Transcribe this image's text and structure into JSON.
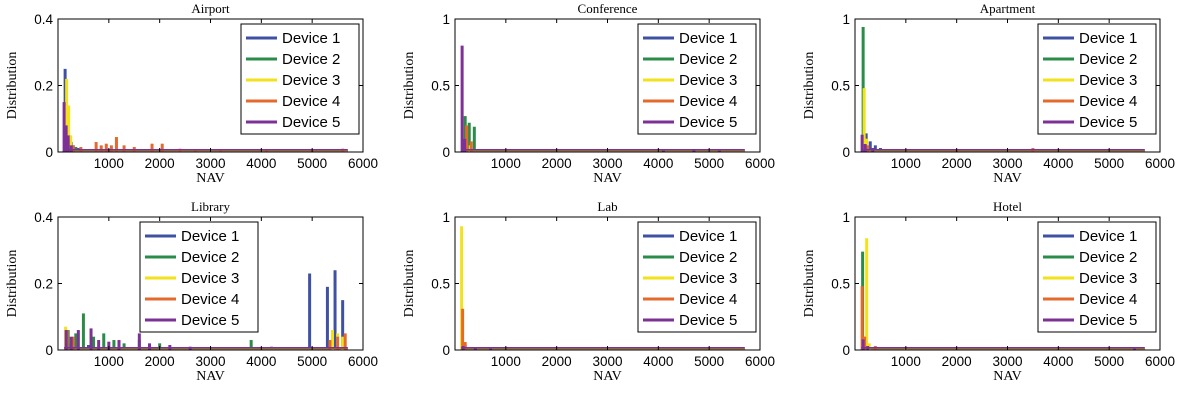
{
  "figure": {
    "legend_entries": [
      "Device 1",
      "Device 2",
      "Device 3",
      "Device 4",
      "Device 5"
    ]
  },
  "chart_data": [
    {
      "type": "line",
      "title": "Airport",
      "xlabel": "NAV",
      "ylabel": "Distribution",
      "xlim": [
        0,
        6000
      ],
      "ylim": [
        0,
        0.4
      ],
      "xticks": [
        "1000",
        "2000",
        "3000",
        "4000",
        "5000",
        "6000"
      ],
      "yticks": [
        "0",
        "0.2",
        "0.4"
      ],
      "legend": "top-right",
      "grid": false,
      "series": [
        {
          "name": "Device 1",
          "color": "#3F51A3",
          "spikes": [
            [
              140,
              0.25
            ],
            [
              180,
              0.11
            ],
            [
              220,
              0.05
            ],
            [
              300,
              0.02
            ],
            [
              400,
              0.012
            ],
            [
              600,
              0.008
            ]
          ]
        },
        {
          "name": "Device 2",
          "color": "#2A8C48",
          "spikes": [
            [
              150,
              0.12
            ],
            [
              200,
              0.07
            ],
            [
              260,
              0.03
            ],
            [
              350,
              0.015
            ]
          ]
        },
        {
          "name": "Device 3",
          "color": "#F2E21B",
          "spikes": [
            [
              170,
              0.22
            ],
            [
              210,
              0.14
            ],
            [
              250,
              0.05
            ]
          ]
        },
        {
          "name": "Device 4",
          "color": "#E36A2C",
          "spikes": [
            [
              200,
              0.04
            ],
            [
              300,
              0.02
            ],
            [
              450,
              0.015
            ],
            [
              750,
              0.03
            ],
            [
              850,
              0.02
            ],
            [
              950,
              0.025
            ],
            [
              1050,
              0.02
            ],
            [
              1150,
              0.045
            ],
            [
              1300,
              0.02
            ],
            [
              1500,
              0.015
            ],
            [
              1850,
              0.025
            ],
            [
              2050,
              0.025
            ],
            [
              2400,
              0.01
            ],
            [
              2700,
              0.008
            ],
            [
              3200,
              0.006
            ],
            [
              4100,
              0.005
            ],
            [
              5000,
              0.006
            ],
            [
              5600,
              0.01
            ]
          ]
        },
        {
          "name": "Device 5",
          "color": "#7B3294",
          "spikes": [
            [
              120,
              0.15
            ],
            [
              160,
              0.08
            ],
            [
              200,
              0.05
            ],
            [
              260,
              0.02
            ]
          ]
        }
      ]
    },
    {
      "type": "line",
      "title": "Conference",
      "xlabel": "NAV",
      "ylabel": "Distribution",
      "xlim": [
        0,
        6000
      ],
      "ylim": [
        0,
        1
      ],
      "xticks": [
        "1000",
        "2000",
        "3000",
        "4000",
        "5000",
        "6000"
      ],
      "yticks": [
        "0",
        "0.5",
        "1"
      ],
      "legend": "top-right",
      "grid": false,
      "series": [
        {
          "name": "Device 1",
          "color": "#3F51A3",
          "spikes": [
            [
              180,
              0.05
            ],
            [
              260,
              0.03
            ],
            [
              400,
              0.02
            ],
            [
              700,
              0.01
            ]
          ]
        },
        {
          "name": "Device 2",
          "color": "#2A8C48",
          "spikes": [
            [
              200,
              0.27
            ],
            [
              280,
              0.22
            ],
            [
              380,
              0.19
            ],
            [
              500,
              0.02
            ],
            [
              1500,
              0.012
            ],
            [
              2500,
              0.012
            ],
            [
              3500,
              0.012
            ]
          ]
        },
        {
          "name": "Device 3",
          "color": "#F2E21B",
          "spikes": [
            [
              220,
              0.1
            ],
            [
              300,
              0.05
            ]
          ]
        },
        {
          "name": "Device 4",
          "color": "#E36A2C",
          "spikes": [
            [
              230,
              0.2
            ],
            [
              320,
              0.08
            ]
          ]
        },
        {
          "name": "Device 5",
          "color": "#7B3294",
          "spikes": [
            [
              140,
              0.8
            ],
            [
              190,
              0.1
            ],
            [
              4100,
              0.01
            ],
            [
              4700,
              0.012
            ],
            [
              5200,
              0.01
            ]
          ]
        }
      ]
    },
    {
      "type": "line",
      "title": "Apartment",
      "xlabel": "NAV",
      "ylabel": "Distribution",
      "xlim": [
        0,
        6000
      ],
      "ylim": [
        0,
        1
      ],
      "xticks": [
        "1000",
        "2000",
        "3000",
        "4000",
        "5000",
        "6000"
      ],
      "yticks": [
        "0",
        "0.5",
        "1"
      ],
      "legend": "top-right",
      "grid": false,
      "series": [
        {
          "name": "Device 1",
          "color": "#3F51A3",
          "spikes": [
            [
              220,
              0.14
            ],
            [
              300,
              0.08
            ],
            [
              400,
              0.05
            ],
            [
              500,
              0.03
            ]
          ]
        },
        {
          "name": "Device 2",
          "color": "#2A8C48",
          "spikes": [
            [
              160,
              0.94
            ],
            [
              210,
              0.1
            ]
          ]
        },
        {
          "name": "Device 3",
          "color": "#F2E21B",
          "spikes": [
            [
              180,
              0.48
            ],
            [
              230,
              0.1
            ]
          ]
        },
        {
          "name": "Device 4",
          "color": "#E36A2C",
          "spikes": [
            [
              250,
              0.05
            ],
            [
              3500,
              0.03
            ],
            [
              2000,
              0.01
            ]
          ]
        },
        {
          "name": "Device 5",
          "color": "#7B3294",
          "spikes": [
            [
              140,
              0.13
            ],
            [
              200,
              0.06
            ],
            [
              350,
              0.03
            ]
          ]
        }
      ]
    },
    {
      "type": "line",
      "title": "Library",
      "xlabel": "NAV",
      "ylabel": "Distribution",
      "xlim": [
        0,
        6000
      ],
      "ylim": [
        0,
        0.4
      ],
      "xticks": [
        "1000",
        "2000",
        "3000",
        "4000",
        "5000",
        "6000"
      ],
      "yticks": [
        "0",
        "0.2",
        "0.4"
      ],
      "legend": "top-center",
      "grid": false,
      "series": [
        {
          "name": "Device 1",
          "color": "#3F51A3",
          "spikes": [
            [
              4950,
              0.23
            ],
            [
              5300,
              0.19
            ],
            [
              5450,
              0.24
            ],
            [
              5600,
              0.15
            ],
            [
              200,
              0.02
            ],
            [
              600,
              0.015
            ]
          ]
        },
        {
          "name": "Device 2",
          "color": "#2A8C48",
          "spikes": [
            [
              200,
              0.06
            ],
            [
              350,
              0.05
            ],
            [
              500,
              0.11
            ],
            [
              700,
              0.04
            ],
            [
              900,
              0.05
            ],
            [
              1100,
              0.03
            ],
            [
              1300,
              0.02
            ],
            [
              1600,
              0.03
            ],
            [
              2000,
              0.02
            ],
            [
              3800,
              0.03
            ],
            [
              4200,
              0.01
            ]
          ]
        },
        {
          "name": "Device 3",
          "color": "#F2E21B",
          "spikes": [
            [
              150,
              0.07
            ],
            [
              5400,
              0.06
            ],
            [
              5500,
              0.05
            ],
            [
              5600,
              0.04
            ]
          ]
        },
        {
          "name": "Device 4",
          "color": "#E36A2C",
          "spikes": [
            [
              180,
              0.06
            ],
            [
              300,
              0.04
            ],
            [
              5350,
              0.03
            ],
            [
              5500,
              0.04
            ],
            [
              5650,
              0.05
            ]
          ]
        },
        {
          "name": "Device 5",
          "color": "#7B3294",
          "spikes": [
            [
              160,
              0.06
            ],
            [
              260,
              0.04
            ],
            [
              400,
              0.06
            ],
            [
              650,
              0.065
            ],
            [
              800,
              0.03
            ],
            [
              1000,
              0.025
            ],
            [
              1200,
              0.03
            ],
            [
              1600,
              0.05
            ],
            [
              1800,
              0.02
            ],
            [
              2200,
              0.015
            ],
            [
              2600,
              0.01
            ]
          ]
        }
      ]
    },
    {
      "type": "line",
      "title": "Lab",
      "xlabel": "NAV",
      "ylabel": "Distribution",
      "xlim": [
        0,
        6000
      ],
      "ylim": [
        0,
        1
      ],
      "xticks": [
        "1000",
        "2000",
        "3000",
        "4000",
        "5000",
        "6000"
      ],
      "yticks": [
        "0",
        "0.5",
        "1"
      ],
      "legend": "top-right",
      "grid": false,
      "series": [
        {
          "name": "Device 1",
          "color": "#3F51A3",
          "spikes": [
            [
              200,
              0.04
            ],
            [
              300,
              0.02
            ],
            [
              450,
              0.02
            ],
            [
              5600,
              0.01
            ]
          ]
        },
        {
          "name": "Device 2",
          "color": "#2A8C48",
          "spikes": [
            [
              180,
              0.05
            ],
            [
              260,
              0.02
            ]
          ]
        },
        {
          "name": "Device 3",
          "color": "#F2E21B",
          "spikes": [
            [
              130,
              0.93
            ],
            [
              170,
              0.05
            ]
          ]
        },
        {
          "name": "Device 4",
          "color": "#E36A2C",
          "spikes": [
            [
              150,
              0.31
            ],
            [
              200,
              0.06
            ]
          ]
        },
        {
          "name": "Device 5",
          "color": "#7B3294",
          "spikes": [
            [
              160,
              0.03
            ],
            [
              400,
              0.015
            ],
            [
              700,
              0.01
            ]
          ]
        }
      ]
    },
    {
      "type": "line",
      "title": "Hotel",
      "xlabel": "NAV",
      "ylabel": "Distribution",
      "xlim": [
        0,
        6000
      ],
      "ylim": [
        0,
        1
      ],
      "xticks": [
        "1000",
        "2000",
        "3000",
        "4000",
        "5000",
        "6000"
      ],
      "yticks": [
        "0",
        "0.5",
        "1"
      ],
      "legend": "top-right",
      "grid": false,
      "series": [
        {
          "name": "Device 1",
          "color": "#3F51A3",
          "spikes": [
            [
              180,
              0.02
            ],
            [
              250,
              0.015
            ]
          ]
        },
        {
          "name": "Device 2",
          "color": "#2A8C48",
          "spikes": [
            [
              150,
              0.74
            ],
            [
              200,
              0.1
            ]
          ]
        },
        {
          "name": "Device 3",
          "color": "#F2E21B",
          "spikes": [
            [
              230,
              0.84
            ],
            [
              280,
              0.05
            ],
            [
              1000,
              0.01
            ]
          ]
        },
        {
          "name": "Device 4",
          "color": "#E36A2C",
          "spikes": [
            [
              140,
              0.48
            ],
            [
              190,
              0.1
            ],
            [
              400,
              0.03
            ]
          ]
        },
        {
          "name": "Device 5",
          "color": "#7B3294",
          "spikes": [
            [
              160,
              0.08
            ],
            [
              250,
              0.03
            ],
            [
              5500,
              0.01
            ]
          ]
        }
      ]
    }
  ]
}
